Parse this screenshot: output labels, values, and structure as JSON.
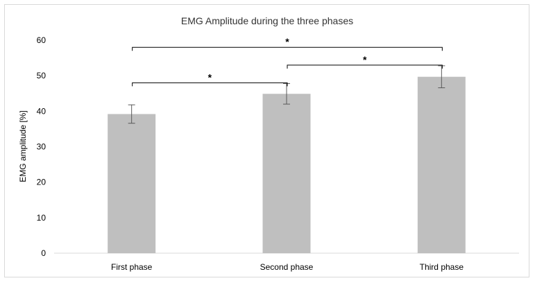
{
  "chart_data": {
    "type": "bar",
    "title": "EMG Amplitude during the three phases",
    "xlabel": "",
    "ylabel": "EMG amplitude [%]",
    "categories": [
      "First phase",
      "Second phase",
      "Third phase"
    ],
    "values": [
      39.2,
      44.9,
      49.7
    ],
    "error": [
      2.6,
      2.9,
      3.1
    ],
    "ylim": [
      0,
      60
    ],
    "yticks": [
      "0",
      "10",
      "20",
      "30",
      "40",
      "50",
      "60"
    ],
    "yticks_values": [
      0,
      10,
      20,
      30,
      40,
      50,
      60
    ],
    "grid": false,
    "bar_color": "#bfbfbf",
    "significance": [
      {
        "from": 0,
        "to": 1,
        "label": "*",
        "y": 48
      },
      {
        "from": 1,
        "to": 2,
        "label": "*",
        "y": 53
      },
      {
        "from": 0,
        "to": 2,
        "label": "*",
        "y": 58
      }
    ]
  }
}
